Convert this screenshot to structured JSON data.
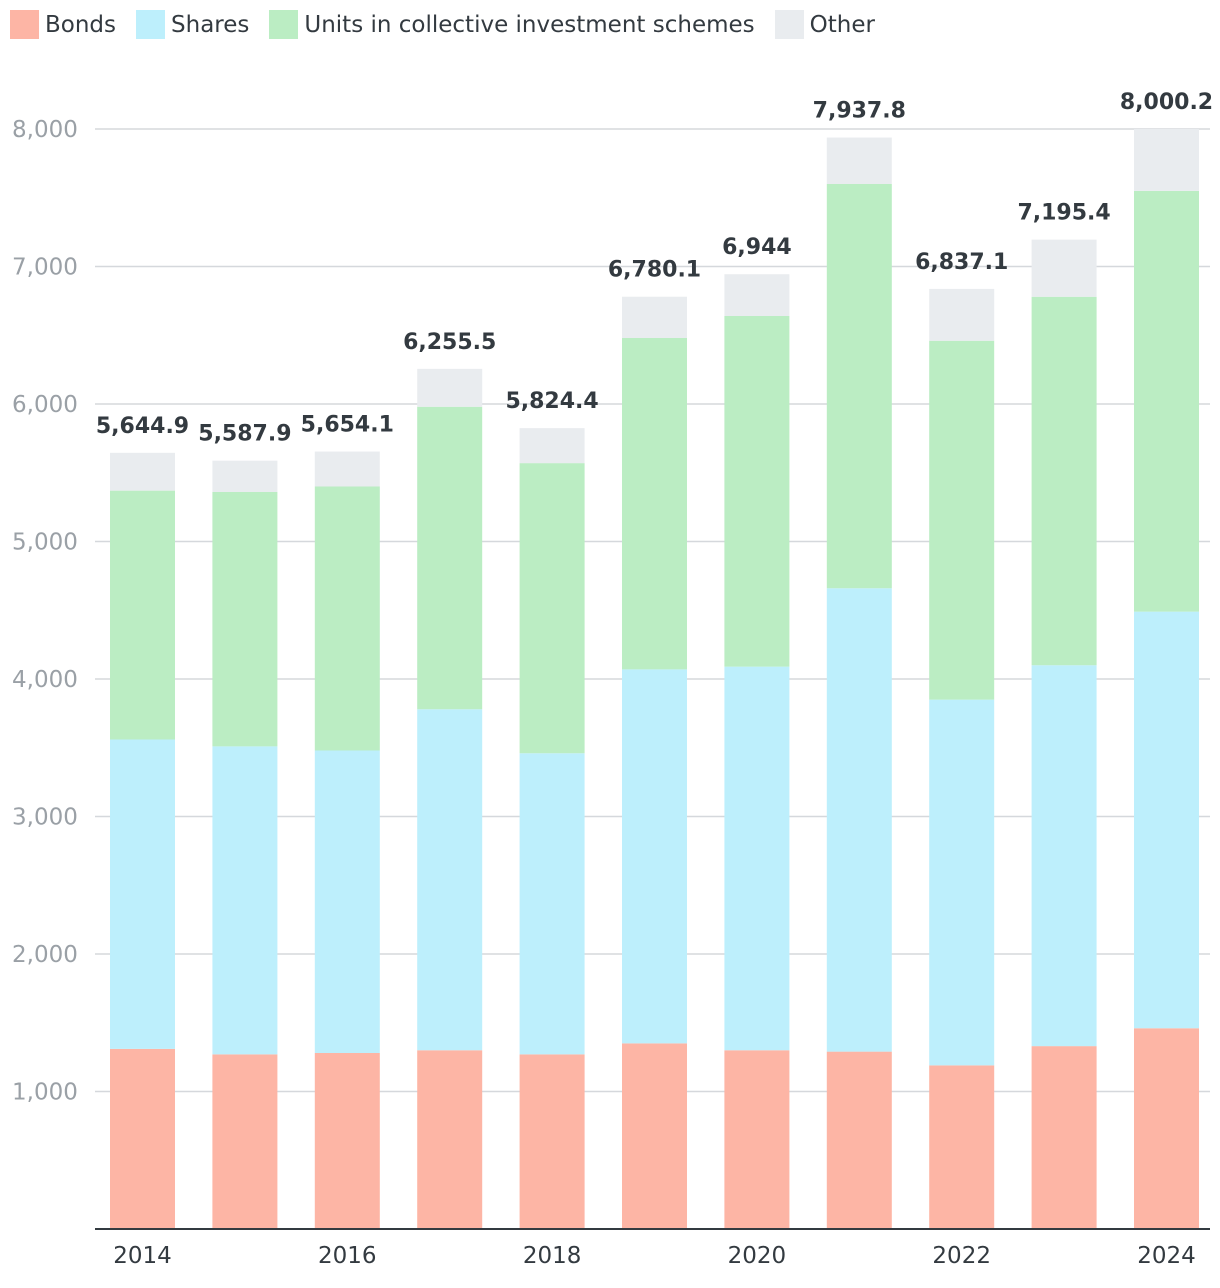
{
  "chart_data": {
    "type": "bar",
    "stacked": true,
    "categories": [
      "2014",
      "2015",
      "2016",
      "2017",
      "2018",
      "2019",
      "2020",
      "2021",
      "2022",
      "2023",
      "2024"
    ],
    "x_tick_labels": [
      "2014",
      "2016",
      "2018",
      "2020",
      "2022",
      "2024"
    ],
    "series": [
      {
        "name": "Bonds",
        "color": "#fdb5a5",
        "values": [
          1310,
          1270,
          1280,
          1300,
          1270,
          1350,
          1300,
          1290,
          1190,
          1330,
          1460
        ]
      },
      {
        "name": "Shares",
        "color": "#bdeffc",
        "values": [
          2250,
          2240,
          2200,
          2480,
          2190,
          2720,
          2790,
          3370,
          2660,
          2770,
          3030
        ]
      },
      {
        "name": "Units in collective investment schemes",
        "color": "#bbedc3",
        "values": [
          1810,
          1850,
          1920,
          2200,
          2110,
          2410,
          2550,
          2940,
          2610,
          2680,
          3060
        ]
      },
      {
        "name": "Other",
        "color": "#e9ecef",
        "values": [
          274.9,
          227.9,
          254.1,
          275.5,
          254.4,
          300.1,
          304,
          337.8,
          377.1,
          415.4,
          450.2
        ]
      }
    ],
    "totals": [
      "5,644.9",
      "5,587.9",
      "5,654.1",
      "6,255.5",
      "5,824.4",
      "6,780.1",
      "6,944",
      "7,937.8",
      "6,837.1",
      "7,195.4",
      "8,000.2"
    ],
    "totals_values": [
      5644.9,
      5587.9,
      5654.1,
      6255.5,
      5824.4,
      6780.1,
      6944,
      7937.8,
      6837.1,
      7195.4,
      8000.2
    ],
    "y_ticks": [
      1000,
      2000,
      3000,
      4000,
      5000,
      6000,
      7000,
      8000
    ],
    "y_tick_labels": [
      "1,000",
      "2,000",
      "3,000",
      "4,000",
      "5,000",
      "6,000",
      "7,000",
      "8,000"
    ],
    "ylim": [
      0,
      8000
    ],
    "grid": true,
    "legend_position": "top-left"
  }
}
